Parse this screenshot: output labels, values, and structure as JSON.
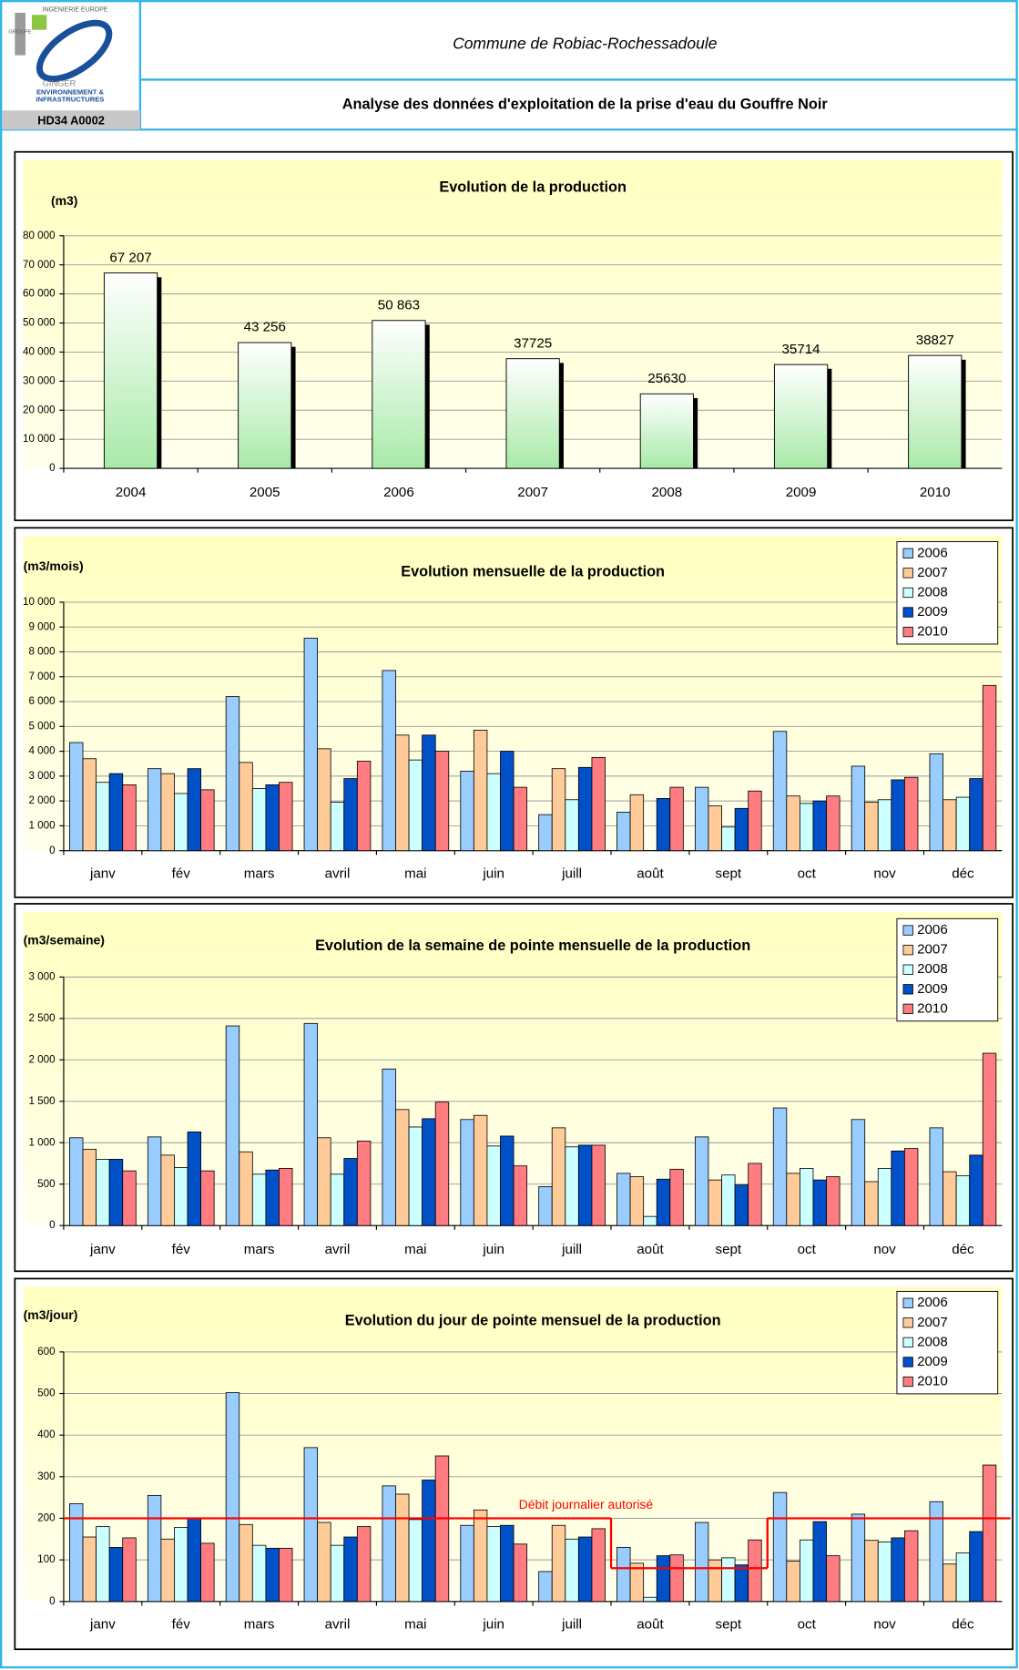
{
  "header": {
    "logo_lines": [
      "INGENIERIE EUROPE",
      "GROUPE",
      "GINGER",
      "ENVIRONNEMENT &",
      "INFRASTRUCTURES"
    ],
    "code": "HD34 A0002",
    "commune": "Commune de Robiac-Rochessadoule",
    "title": "Analyse des données d'exploitation de la prise d'eau du Gouffre Noir"
  },
  "chart_data": [
    {
      "type": "bar",
      "title": "Evolution de la production",
      "y_label": "(m3)",
      "categories": [
        "2004",
        "2005",
        "2006",
        "2007",
        "2008",
        "2009",
        "2010"
      ],
      "values": [
        67207,
        43256,
        50863,
        37725,
        25630,
        35714,
        38827
      ],
      "value_labels": [
        "67 207",
        "43 256",
        "50 863",
        "37725",
        "25630",
        "35714",
        "38827"
      ],
      "ylim": [
        0,
        80000
      ],
      "yticks": [
        0,
        {
          "value": 10000,
          "label": "10 000"
        },
        {
          "value": 20000,
          "label": "20 000"
        },
        {
          "value": 30000,
          "label": "30 000"
        },
        {
          "value": 40000,
          "label": "40 000"
        },
        {
          "value": 50000,
          "label": "50 000"
        },
        {
          "value": 60000,
          "label": "60 000"
        },
        {
          "value": 70000,
          "label": "70 000"
        },
        {
          "value": 80000,
          "label": "80 000"
        }
      ],
      "grid": true
    },
    {
      "type": "grouped_bar",
      "title": "Evolution mensuelle de la production",
      "y_label": "(m3/mois)",
      "categories": [
        "janv",
        "fév",
        "mars",
        "avril",
        "mai",
        "juin",
        "juill",
        "août",
        "sept",
        "oct",
        "nov",
        "déc"
      ],
      "series": [
        {
          "name": "2006",
          "color": "#99ccff",
          "values": [
            4350,
            3300,
            6200,
            8550,
            7250,
            3200,
            1450,
            1550,
            2550,
            4800,
            3400,
            3900
          ]
        },
        {
          "name": "2007",
          "color": "#ffcc99",
          "values": [
            3700,
            3100,
            3550,
            4100,
            4650,
            4850,
            3300,
            2250,
            1800,
            2200,
            1950,
            2050
          ]
        },
        {
          "name": "2008",
          "color": "#ccffff",
          "values": [
            2750,
            2300,
            2500,
            1950,
            3650,
            3100,
            2050,
            0,
            950,
            1900,
            2050,
            2150
          ]
        },
        {
          "name": "2009",
          "color": "#0050c8",
          "values": [
            3100,
            3300,
            2650,
            2900,
            4650,
            4000,
            3350,
            2100,
            1700,
            2000,
            2850,
            2900
          ]
        },
        {
          "name": "2010",
          "color": "#ff7c80",
          "values": [
            2650,
            2450,
            2750,
            3600,
            4000,
            2550,
            3750,
            2550,
            2400,
            2200,
            2950,
            6650
          ]
        }
      ],
      "ylim": [
        0,
        10000
      ],
      "yticks": [
        0,
        {
          "value": 1000,
          "label": "1 000"
        },
        {
          "value": 2000,
          "label": "2 000"
        },
        {
          "value": 3000,
          "label": "3 000"
        },
        {
          "value": 4000,
          "label": "4 000"
        },
        {
          "value": 5000,
          "label": "5 000"
        },
        {
          "value": 6000,
          "label": "6 000"
        },
        {
          "value": 7000,
          "label": "7 000"
        },
        {
          "value": 8000,
          "label": "8 000"
        },
        {
          "value": 9000,
          "label": "9 000"
        },
        {
          "value": 10000,
          "label": "10 000"
        }
      ],
      "grid": true,
      "legend": "top-right"
    },
    {
      "type": "grouped_bar",
      "title": "Evolution de la semaine de pointe mensuelle de la production",
      "y_label": "(m3/semaine)",
      "categories": [
        "janv",
        "fév",
        "mars",
        "avril",
        "mai",
        "juin",
        "juill",
        "août",
        "sept",
        "oct",
        "nov",
        "déc"
      ],
      "series": [
        {
          "name": "2006",
          "color": "#99ccff",
          "values": [
            1060,
            1070,
            2410,
            2440,
            1890,
            1280,
            470,
            630,
            1070,
            1420,
            1280,
            1180
          ]
        },
        {
          "name": "2007",
          "color": "#ffcc99",
          "values": [
            920,
            850,
            890,
            1060,
            1400,
            1330,
            1180,
            590,
            550,
            630,
            530,
            650
          ]
        },
        {
          "name": "2008",
          "color": "#ccffff",
          "values": [
            800,
            700,
            620,
            620,
            1190,
            960,
            950,
            110,
            610,
            690,
            690,
            600
          ]
        },
        {
          "name": "2009",
          "color": "#0050c8",
          "values": [
            800,
            1130,
            670,
            810,
            1290,
            1080,
            970,
            560,
            490,
            550,
            900,
            850
          ]
        },
        {
          "name": "2010",
          "color": "#ff7c80",
          "values": [
            660,
            660,
            690,
            1020,
            1490,
            720,
            970,
            680,
            750,
            590,
            930,
            2080
          ]
        }
      ],
      "ylim": [
        0,
        3000
      ],
      "yticks": [
        0,
        500,
        {
          "value": 1000,
          "label": "1 000"
        },
        {
          "value": 1500,
          "label": "1 500"
        },
        {
          "value": 2000,
          "label": "2 000"
        },
        {
          "value": 2500,
          "label": "2 500"
        },
        {
          "value": 3000,
          "label": "3 000"
        }
      ],
      "grid": true,
      "legend": "top-right"
    },
    {
      "type": "grouped_bar",
      "title": "Evolution du jour de pointe mensuel de la production",
      "y_label": "(m3/jour)",
      "categories": [
        "janv",
        "fév",
        "mars",
        "avril",
        "mai",
        "juin",
        "juill",
        "août",
        "sept",
        "oct",
        "nov",
        "déc"
      ],
      "series": [
        {
          "name": "2006",
          "color": "#99ccff",
          "values": [
            235,
            255,
            502,
            370,
            278,
            183,
            72,
            130,
            190,
            262,
            210,
            240
          ]
        },
        {
          "name": "2007",
          "color": "#ffcc99",
          "values": [
            155,
            150,
            185,
            190,
            258,
            220,
            183,
            92,
            100,
            97,
            147,
            90
          ]
        },
        {
          "name": "2008",
          "color": "#ccffff",
          "values": [
            180,
            178,
            135,
            135,
            197,
            180,
            150,
            10,
            105,
            148,
            143,
            117
          ]
        },
        {
          "name": "2009",
          "color": "#0050c8",
          "values": [
            130,
            200,
            128,
            155,
            292,
            183,
            155,
            110,
            88,
            192,
            153,
            168
          ]
        },
        {
          "name": "2010",
          "color": "#ff7c80",
          "values": [
            153,
            140,
            128,
            180,
            350,
            138,
            175,
            112,
            148,
            110,
            170,
            328
          ]
        }
      ],
      "limit": {
        "label": "Débit journalier autorisé",
        "color": "#ff0000",
        "values": [
          200,
          200,
          200,
          200,
          200,
          200,
          200,
          80,
          80,
          200,
          200,
          200
        ]
      },
      "ylim": [
        0,
        600
      ],
      "yticks": [
        0,
        100,
        200,
        300,
        400,
        500,
        600
      ],
      "grid": true,
      "legend": "top-right"
    }
  ]
}
